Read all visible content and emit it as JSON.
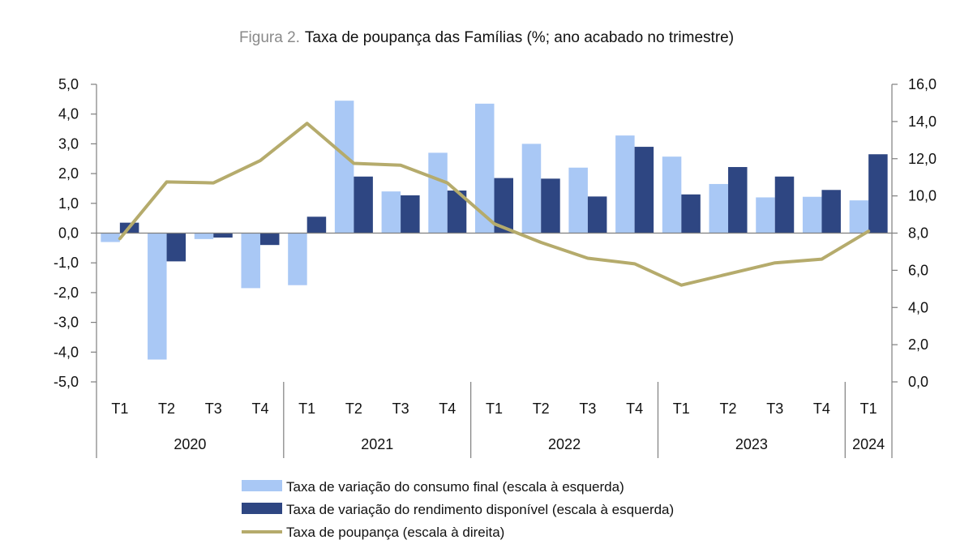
{
  "chart_data": {
    "type": "bar",
    "title_prefix": "Figura 2.",
    "title": "Taxa de poupança das Famílias (%; ano acabado no trimestre)",
    "quarters": [
      "T1",
      "T2",
      "T3",
      "T4",
      "T1",
      "T2",
      "T3",
      "T4",
      "T1",
      "T2",
      "T3",
      "T4",
      "T1",
      "T2",
      "T3",
      "T4",
      "T1"
    ],
    "years": [
      {
        "label": "2020",
        "quarters": 4
      },
      {
        "label": "2021",
        "quarters": 4
      },
      {
        "label": "2022",
        "quarters": 4
      },
      {
        "label": "2023",
        "quarters": 4
      },
      {
        "label": "2024",
        "quarters": 1
      }
    ],
    "left_axis": {
      "min": -5,
      "max": 5,
      "step": 1,
      "tick_labels": [
        "5,0",
        "4,0",
        "3,0",
        "2,0",
        "1,0",
        "0,0",
        "-1,0",
        "-2,0",
        "-3,0",
        "-4,0",
        "-5,0"
      ]
    },
    "right_axis": {
      "min": 0,
      "max": 16,
      "step": 2,
      "tick_labels": [
        "16,0",
        "14,0",
        "12,0",
        "10,0",
        "8,0",
        "6,0",
        "4,0",
        "2,0",
        "0,0"
      ]
    },
    "series": [
      {
        "name": "Taxa de variação do consumo final (escala à esquerda)",
        "type": "bar",
        "axis": "left",
        "color": "#a9c8f5",
        "values": [
          -0.3,
          -4.25,
          -0.2,
          -1.85,
          -1.75,
          4.45,
          1.4,
          2.7,
          4.35,
          3.0,
          2.2,
          3.28,
          2.57,
          1.65,
          1.2,
          1.22,
          1.1
        ]
      },
      {
        "name": "Taxa de variação do rendimento disponível (escala à esquerda)",
        "type": "bar",
        "axis": "left",
        "color": "#2e4682",
        "values": [
          0.35,
          -0.95,
          -0.15,
          -0.4,
          0.55,
          1.9,
          1.27,
          1.43,
          1.85,
          1.83,
          1.23,
          2.9,
          1.3,
          2.22,
          1.9,
          1.45,
          2.65
        ]
      },
      {
        "name": "Taxa de poupança (escala à direita)",
        "type": "line",
        "axis": "right",
        "color": "#b5ab6c",
        "values": [
          7.7,
          10.75,
          10.7,
          11.9,
          13.9,
          11.75,
          11.65,
          10.7,
          8.5,
          7.5,
          6.65,
          6.35,
          5.2,
          5.8,
          6.4,
          6.6,
          8.1
        ]
      }
    ]
  }
}
